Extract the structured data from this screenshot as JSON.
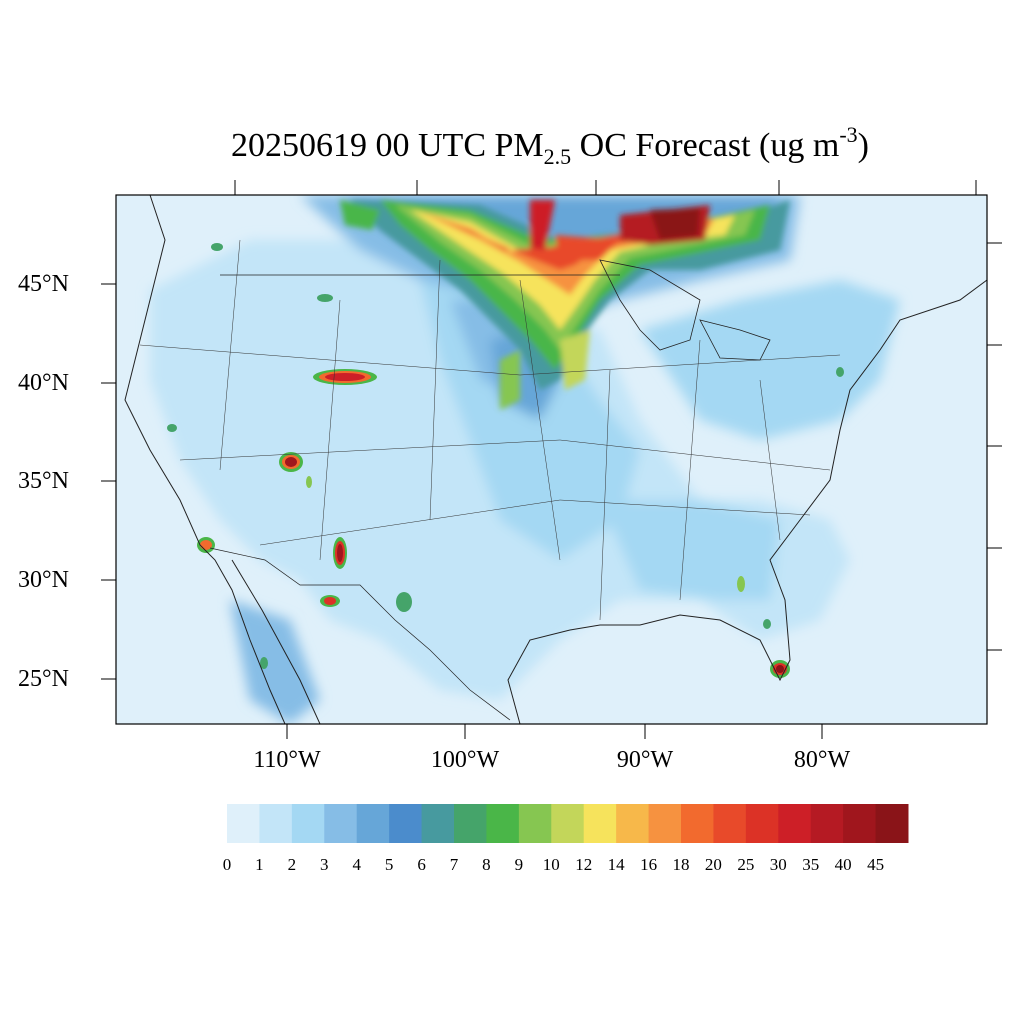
{
  "title": {
    "prefix": "20250619 00 UTC PM",
    "subscript": "2.5",
    "middle": " OC Forecast (ug m",
    "superscript": "-3",
    "suffix": ")"
  },
  "map": {
    "lat_labels": [
      "45°N",
      "40°N",
      "35°N",
      "30°N",
      "25°N"
    ],
    "lon_labels": [
      "110°W",
      "100°W",
      "90°W",
      "80°W"
    ],
    "background_color": "#dff0fa"
  },
  "colorbar": {
    "labels": [
      "0",
      "1",
      "2",
      "3",
      "4",
      "5",
      "6",
      "7",
      "8",
      "9",
      "10",
      "12",
      "14",
      "16",
      "18",
      "20",
      "25",
      "30",
      "35",
      "40",
      "45"
    ],
    "colors": [
      "#dff0fa",
      "#c3e5f8",
      "#a4d8f3",
      "#86bde6",
      "#66a6d8",
      "#4b8ccc",
      "#479a9f",
      "#45a46a",
      "#4ab648",
      "#86c651",
      "#c3d65a",
      "#f6e35c",
      "#f7b84a",
      "#f69240",
      "#f26a2e",
      "#e84a2a",
      "#dc3226",
      "#cd1f27",
      "#b51a23",
      "#a0161d",
      "#8a1418"
    ]
  }
}
